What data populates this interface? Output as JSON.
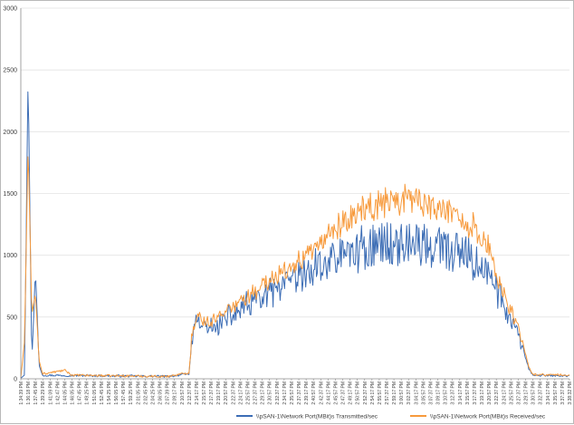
{
  "chart_data": {
    "type": "line",
    "title": "",
    "xlabel": "",
    "ylabel": "",
    "ylim": [
      0,
      3000
    ],
    "y_ticks": [
      0,
      500,
      1000,
      1500,
      2000,
      2500,
      3000
    ],
    "grid": "horizontal",
    "legend_position": "bottom",
    "x_tick_labels": [
      "1:34:39 PM",
      "1:36:18 PM",
      "1:37:45 PM",
      "1:39:29 PM",
      "1:41:09 PM",
      "1:42:47 PM",
      "1:44:05 PM",
      "1:46:05 PM",
      "1:47:45 PM",
      "1:49:25 PM",
      "1:51:05 PM",
      "1:52:45 PM",
      "1:54:25 PM",
      "1:56:05 PM",
      "1:57:45 PM",
      "1:59:25 PM",
      "2:01:05 PM",
      "2:02:45 PM",
      "2:04:25 PM",
      "2:06:05 PM",
      "2:07:39 PM",
      "2:09:17 PM",
      "2:10:57 PM",
      "2:12:37 PM",
      "2:14:17 PM",
      "2:15:57 PM",
      "2:17:37 PM",
      "2:19:17 PM",
      "2:20:57 PM",
      "2:22:37 PM",
      "2:24:17 PM",
      "2:25:57 PM",
      "2:27:37 PM",
      "2:29:17 PM",
      "2:30:57 PM",
      "2:32:37 PM",
      "2:34:17 PM",
      "2:35:57 PM",
      "2:37:37 PM",
      "2:39:17 PM",
      "2:40:57 PM",
      "2:42:37 PM",
      "2:44:17 PM",
      "2:45:57 PM",
      "2:47:37 PM",
      "2:49:17 PM",
      "2:50:57 PM",
      "2:52:37 PM",
      "2:54:17 PM",
      "2:55:57 PM",
      "2:57:37 PM",
      "2:59:17 PM",
      "3:00:57 PM",
      "3:02:37 PM",
      "3:04:17 PM",
      "3:05:57 PM",
      "3:07:37 PM",
      "3:09:17 PM",
      "3:10:57 PM",
      "3:12:37 PM",
      "3:14:17 PM",
      "3:15:57 PM",
      "3:17:37 PM",
      "3:19:17 PM",
      "3:20:57 PM",
      "3:22:37 PM",
      "3:24:17 PM",
      "3:25:57 PM",
      "3:27:37 PM",
      "3:29:17 PM",
      "3:30:57 PM",
      "3:32:37 PM",
      "3:34:17 PM",
      "3:35:57 PM",
      "3:37:37 PM",
      "3:38:32 PM"
    ],
    "profile": {
      "transmitted": [
        [
          0,
          5
        ],
        [
          0.5,
          30
        ],
        [
          1,
          2480
        ],
        [
          1.5,
          130
        ],
        [
          2,
          880
        ],
        [
          2.5,
          110
        ],
        [
          3,
          20
        ],
        [
          20,
          10
        ],
        [
          23,
          30
        ],
        [
          23.4,
          330
        ],
        [
          24,
          450
        ],
        [
          26,
          400
        ],
        [
          28,
          480
        ],
        [
          30,
          560
        ],
        [
          32,
          620
        ],
        [
          34,
          680
        ],
        [
          36,
          740
        ],
        [
          38,
          800
        ],
        [
          40,
          880
        ],
        [
          42,
          950
        ],
        [
          44,
          1000
        ],
        [
          46,
          1040
        ],
        [
          48,
          1070
        ],
        [
          50,
          1090
        ],
        [
          52,
          1100
        ],
        [
          54,
          1090
        ],
        [
          56,
          1070
        ],
        [
          58,
          1040
        ],
        [
          60,
          1000
        ],
        [
          62,
          950
        ],
        [
          64,
          850
        ],
        [
          66,
          600
        ],
        [
          68,
          350
        ],
        [
          69.5,
          60
        ],
        [
          70,
          20
        ],
        [
          75,
          15
        ]
      ],
      "received": [
        [
          0,
          10
        ],
        [
          0.5,
          300
        ],
        [
          1,
          1900
        ],
        [
          1.5,
          520
        ],
        [
          2,
          690
        ],
        [
          2.5,
          150
        ],
        [
          3,
          30
        ],
        [
          6,
          60
        ],
        [
          7,
          20
        ],
        [
          20,
          10
        ],
        [
          23,
          40
        ],
        [
          23.4,
          380
        ],
        [
          24,
          500
        ],
        [
          26,
          460
        ],
        [
          28,
          550
        ],
        [
          30,
          630
        ],
        [
          32,
          700
        ],
        [
          34,
          780
        ],
        [
          36,
          860
        ],
        [
          38,
          950
        ],
        [
          40,
          1050
        ],
        [
          42,
          1160
        ],
        [
          44,
          1260
        ],
        [
          46,
          1340
        ],
        [
          48,
          1400
        ],
        [
          50,
          1440
        ],
        [
          52,
          1460
        ],
        [
          54,
          1450
        ],
        [
          56,
          1420
        ],
        [
          58,
          1380
        ],
        [
          60,
          1320
        ],
        [
          62,
          1230
        ],
        [
          64,
          1050
        ],
        [
          66,
          700
        ],
        [
          68,
          400
        ],
        [
          69.5,
          80
        ],
        [
          70,
          25
        ],
        [
          75,
          20
        ]
      ]
    },
    "series": [
      {
        "name": "\\\\pSAN-1\\Network Port(MBit)s Transmitted/sec",
        "color": "#3c6db5",
        "profile_key": "transmitted",
        "amplitude": 0.17
      },
      {
        "name": "\\\\pSAN-1\\Network Port(MBit)s Received/sec",
        "color": "#f79a3c",
        "profile_key": "received",
        "amplitude": 0.08
      }
    ]
  }
}
